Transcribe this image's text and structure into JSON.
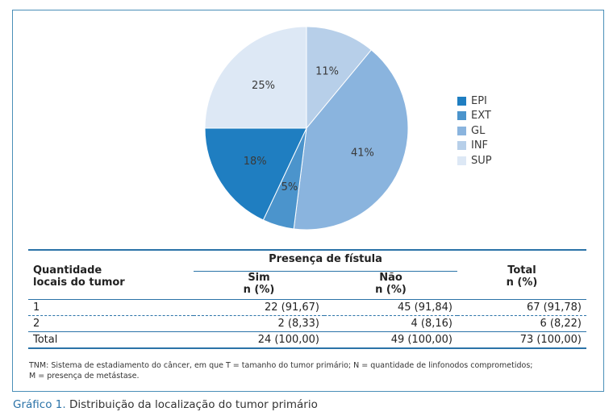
{
  "chart_data": {
    "type": "pie",
    "slices": [
      {
        "label": "INF",
        "value": 11,
        "text": "11%",
        "color": "#b7cfe9"
      },
      {
        "label": "GL",
        "value": 41,
        "text": "41%",
        "color": "#8ab4de"
      },
      {
        "label": "EXT",
        "value": 5,
        "text": "5%",
        "color": "#4b94cc"
      },
      {
        "label": "EPI",
        "value": 18,
        "text": "18%",
        "color": "#1f7ec1"
      },
      {
        "label": "SUP",
        "value": 25,
        "text": "25%",
        "color": "#dde8f5"
      }
    ],
    "legend": [
      "EPI",
      "EXT",
      "GL",
      "INF",
      "SUP"
    ],
    "legend_position": "right"
  },
  "table": {
    "col_qty": "Quantidade locais do tumor",
    "col_qty_line1": "Quantidade",
    "col_qty_line2": "locais do tumor",
    "group": "Presença de fístula",
    "sim": "Sim",
    "nao": "Não",
    "total": "Total",
    "unit": "n (%)",
    "rows": [
      {
        "label": "1",
        "sim": "22 (91,67)",
        "nao": "45 (91,84)",
        "total": "67 (91,78)"
      },
      {
        "label": "2",
        "sim": "2 (8,33)",
        "nao": "4 (8,16)",
        "total": "6 (8,22)"
      },
      {
        "label": "Total",
        "sim": "24 (100,00)",
        "nao": "49 (100,00)",
        "total": "73 (100,00)"
      }
    ]
  },
  "note_line1": "TNM: Sistema de estadiamento do câncer, em que T = tamanho do tumor primário; N = quantidade de linfonodos comprometidos;",
  "note_line2": "M = presença de metástase.",
  "caption_label": "Gráfico 1.",
  "caption_text": "Distribuição da localização do tumor primário"
}
